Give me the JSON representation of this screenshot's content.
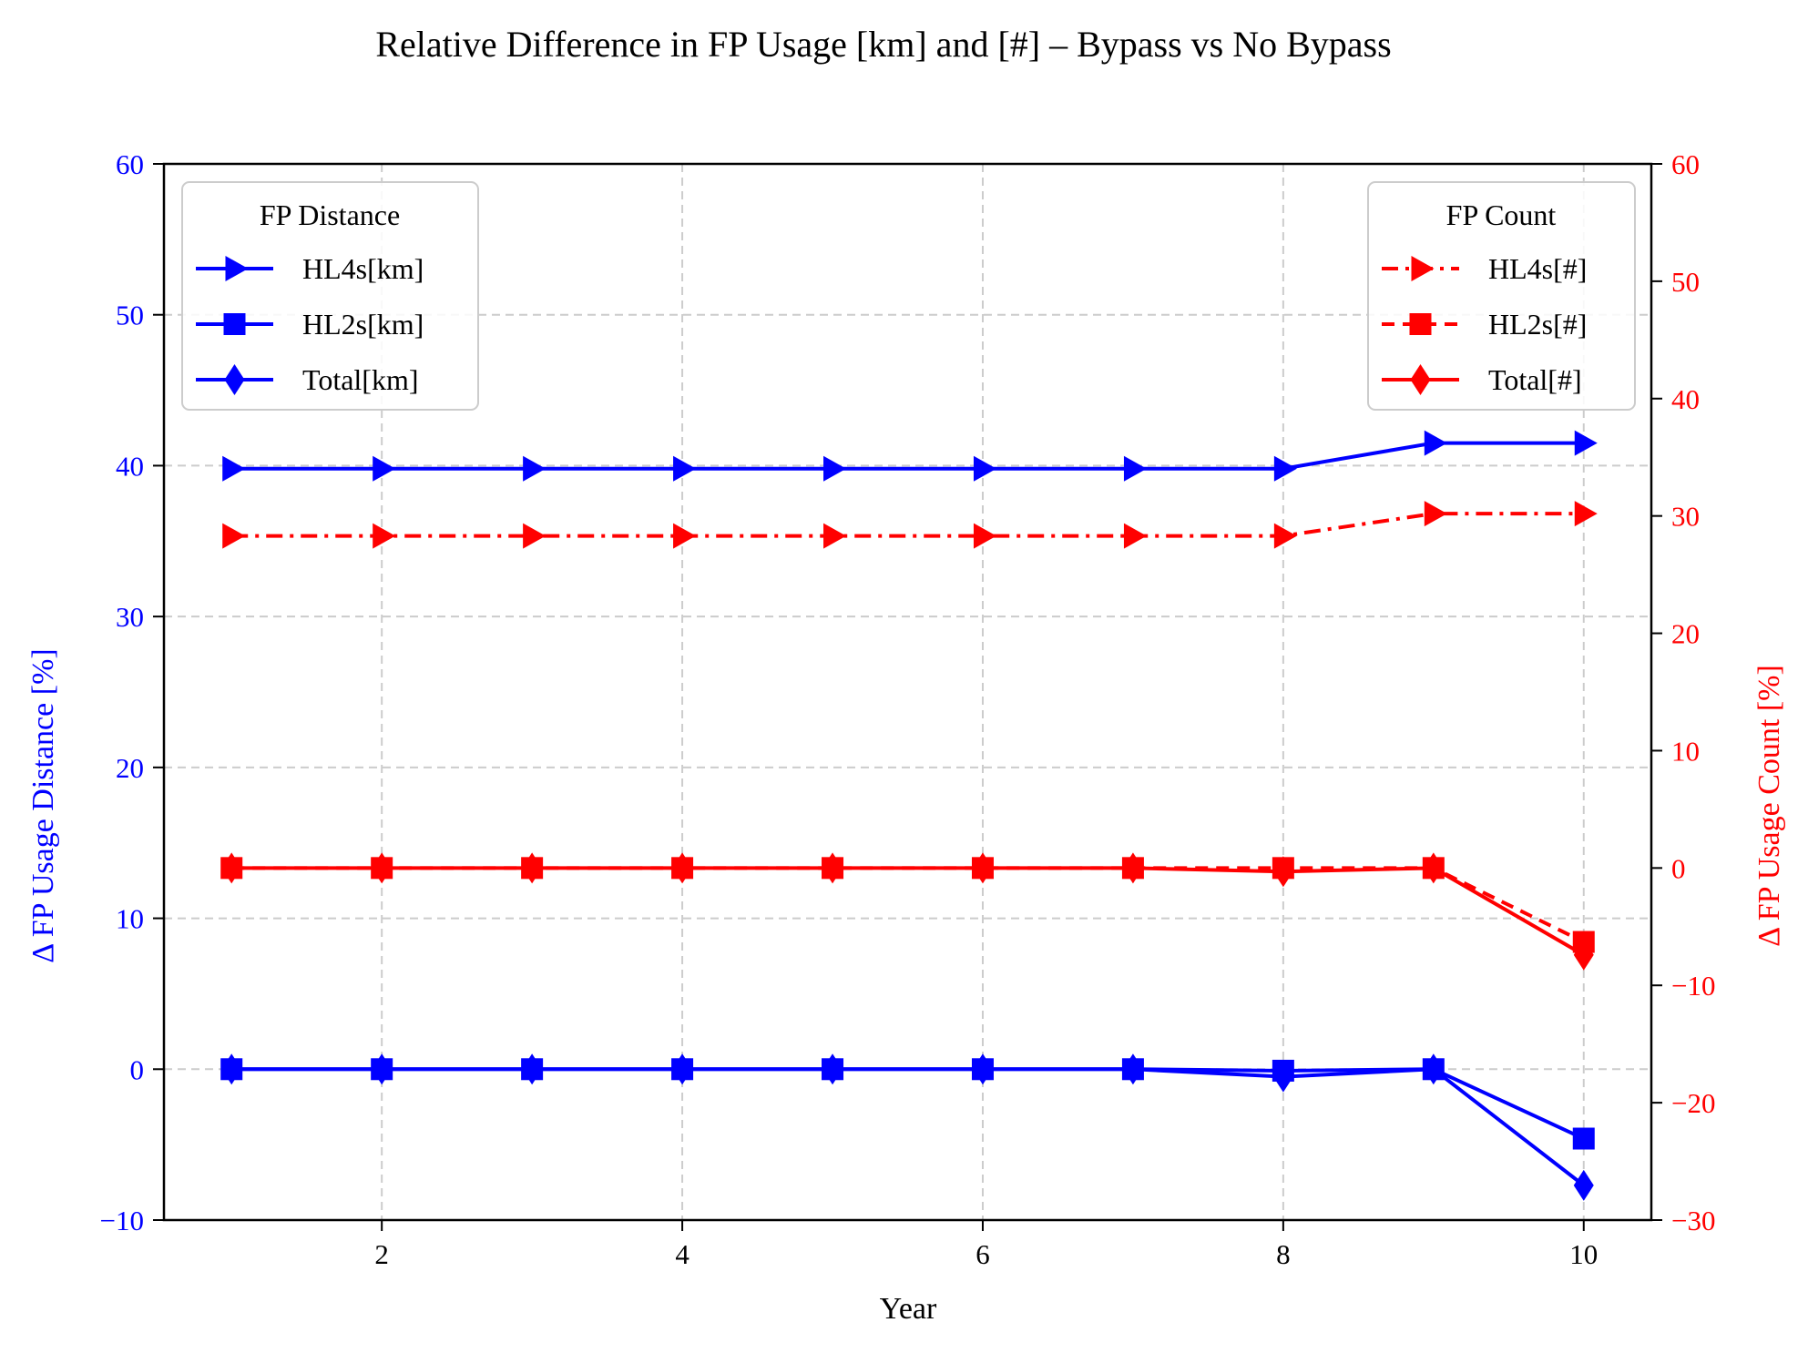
{
  "chart_data": {
    "type": "line",
    "title": "Relative Difference in FP Usage [km] and [#] – Bypass vs No Bypass",
    "xlabel": "Year",
    "ylabel_left": "Δ FP Usage Distance [%]",
    "ylabel_right": "Δ FP Usage Count [%]",
    "x": [
      1,
      2,
      3,
      4,
      5,
      6,
      7,
      8,
      9,
      10
    ],
    "xlim": [
      0.55,
      10.45
    ],
    "xticks": [
      2,
      4,
      6,
      8,
      10
    ],
    "ylim_left": [
      -10,
      60
    ],
    "yticks_left": [
      -10,
      0,
      10,
      20,
      30,
      40,
      50,
      60
    ],
    "ylim_right": [
      -30,
      60
    ],
    "yticks_right": [
      -30,
      -20,
      -10,
      0,
      10,
      20,
      30,
      40,
      50,
      60
    ],
    "grid": true,
    "colors": {
      "left": "#0000ff",
      "right": "#ff0000"
    },
    "legends": [
      {
        "title": "FP Distance",
        "placement": "top-left",
        "axis": "left"
      },
      {
        "title": "FP Count",
        "placement": "top-right",
        "axis": "right"
      }
    ],
    "series": [
      {
        "name": "HL4s[km]",
        "axis": "left",
        "color": "#0000ff",
        "marker": "triangle-right",
        "linestyle": "solid",
        "values": [
          39.8,
          39.8,
          39.8,
          39.8,
          39.8,
          39.8,
          39.8,
          39.8,
          41.5,
          41.5
        ]
      },
      {
        "name": "HL2s[km]",
        "axis": "left",
        "color": "#0000ff",
        "marker": "square",
        "linestyle": "solid",
        "values": [
          0,
          0,
          0,
          0,
          0,
          0,
          0,
          -0.1,
          0,
          -4.6
        ]
      },
      {
        "name": "Total[km]",
        "axis": "left",
        "color": "#0000ff",
        "marker": "diamond",
        "linestyle": "solid",
        "values": [
          0,
          0,
          0,
          0,
          0,
          0,
          0,
          -0.5,
          0,
          -7.7
        ]
      },
      {
        "name": "HL4s[#]",
        "axis": "right",
        "color": "#ff0000",
        "marker": "triangle-right",
        "linestyle": "dashdot",
        "values": [
          28.3,
          28.3,
          28.3,
          28.3,
          28.3,
          28.3,
          28.3,
          28.3,
          30.2,
          30.2
        ]
      },
      {
        "name": "HL2s[#]",
        "axis": "right",
        "color": "#ff0000",
        "marker": "square",
        "linestyle": "dashed",
        "values": [
          0,
          0,
          0,
          0,
          0,
          0,
          0,
          0,
          0,
          -6.3
        ]
      },
      {
        "name": "Total[#]",
        "axis": "right",
        "color": "#ff0000",
        "marker": "diamond",
        "linestyle": "solid",
        "values": [
          0,
          0,
          0,
          0,
          0,
          0,
          0,
          -0.3,
          0,
          -7.4
        ]
      }
    ]
  }
}
